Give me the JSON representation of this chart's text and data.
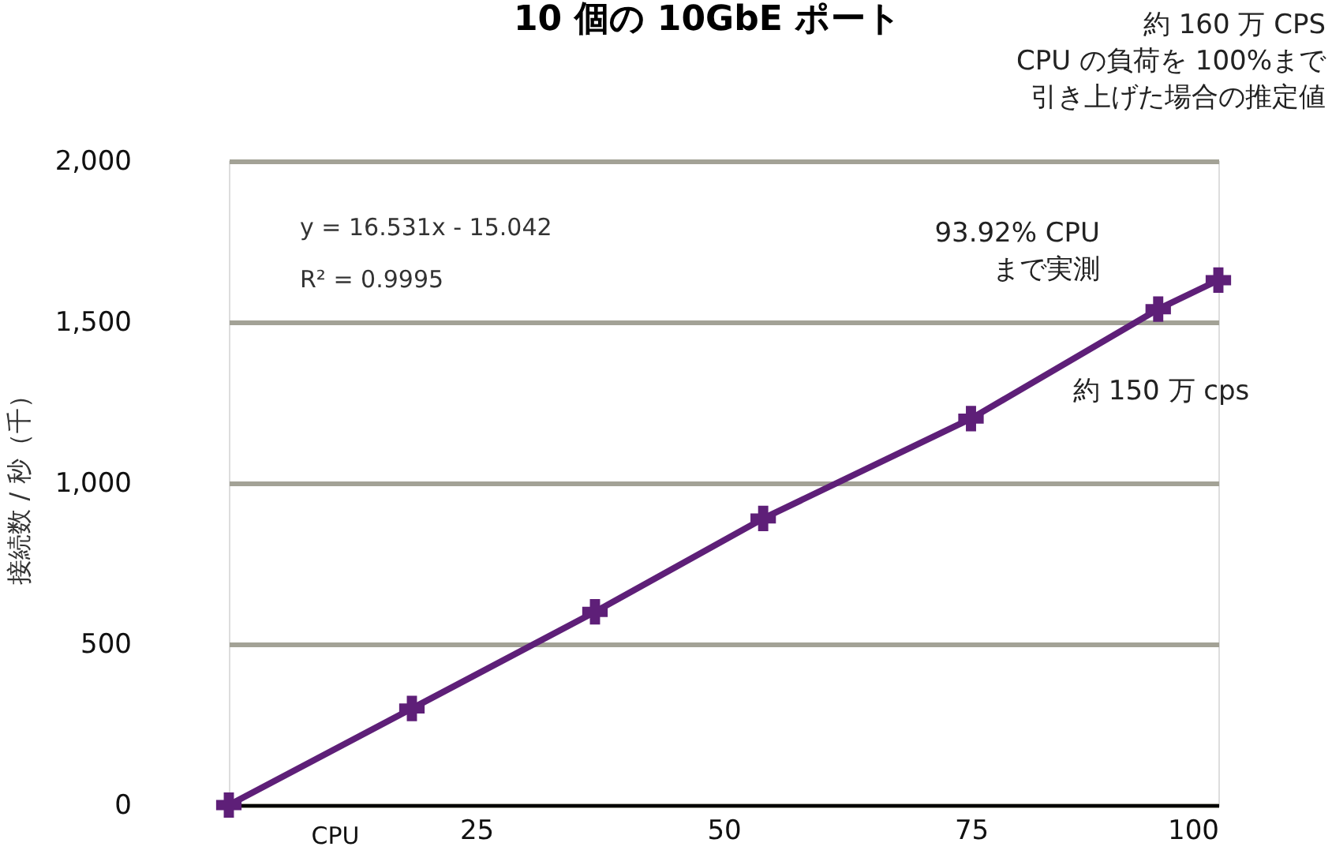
{
  "chart_data": {
    "type": "line",
    "title": "10 個の 10GbE ポート",
    "xlabel": "CPU",
    "ylabel": "接続数 / 秒（千）",
    "x": [
      0,
      18.5,
      37,
      54,
      75,
      93.92,
      100
    ],
    "series": [
      {
        "color": "#5e1f78",
        "values": [
          0,
          300,
          600,
          890,
          1200,
          1540,
          1630
        ]
      }
    ],
    "xlim": [
      0,
      100
    ],
    "xticks": [
      25,
      50,
      75,
      100
    ],
    "ylim": [
      0,
      2000
    ],
    "yticks": [
      {
        "value": 0,
        "label": "0"
      },
      {
        "value": 500,
        "label": "500"
      },
      {
        "value": 1000,
        "label": "1,000"
      },
      {
        "value": 1500,
        "label": "1,500"
      },
      {
        "value": 2000,
        "label": "2,000"
      }
    ],
    "grid": "y",
    "marker": "cross",
    "line_style": "solid",
    "annotations": [
      "y = 16.531x - 15.042",
      "R² = 0.9995",
      "93.92% CPU\nまで実測",
      "約 150 万 cps",
      "約 160 万 CPS",
      "CPU の負荷を 100%まで",
      "引き上げた場合の推定値"
    ]
  }
}
